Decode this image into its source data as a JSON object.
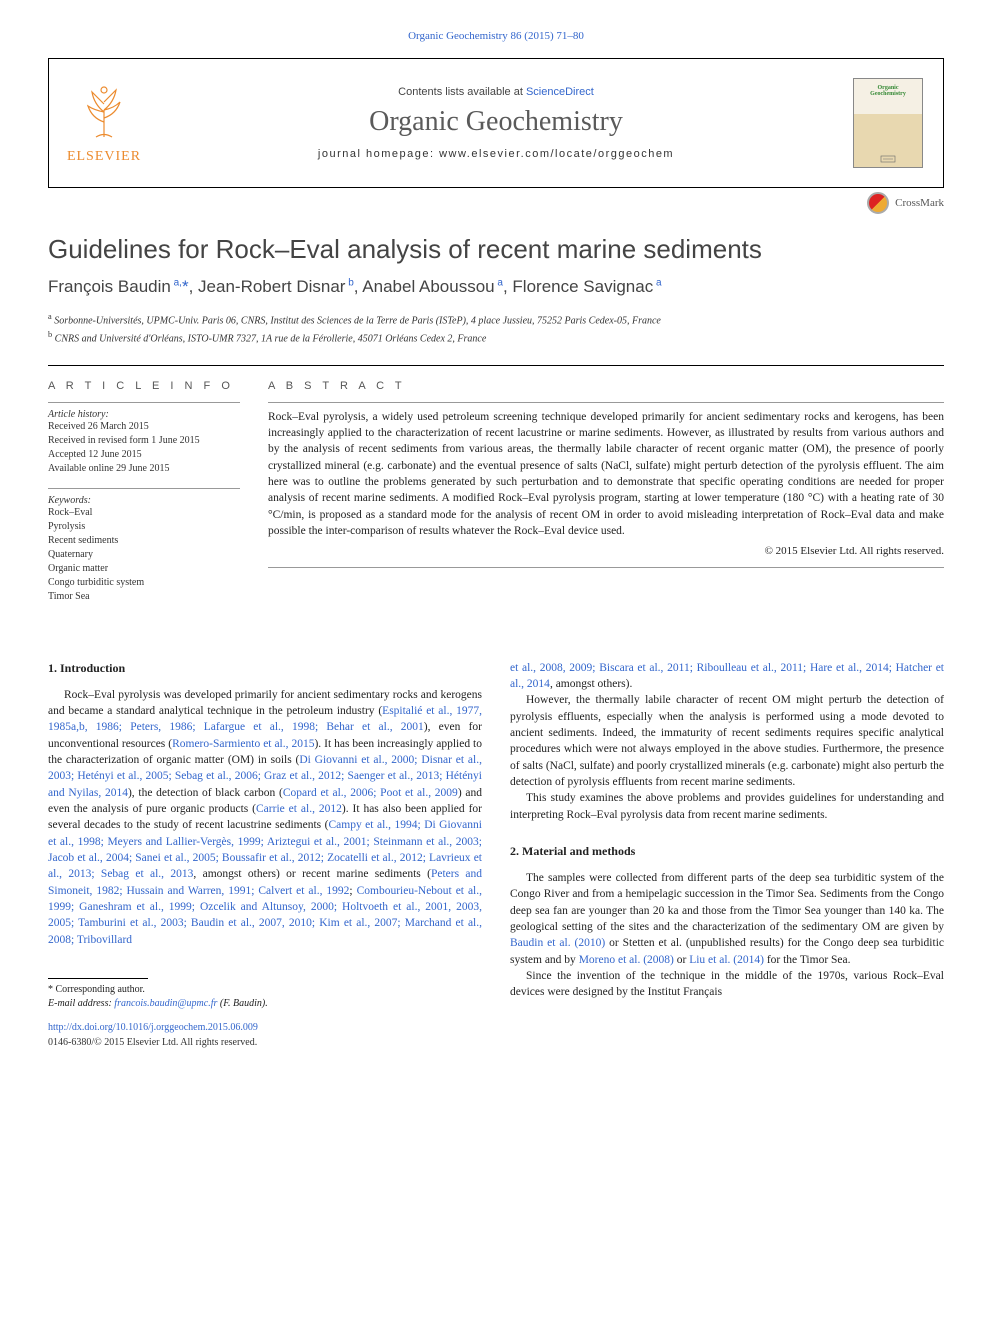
{
  "top_link": "Organic Geochemistry 86 (2015) 71–80",
  "header": {
    "contents_pre": "Contents lists available at ",
    "contents_link": "ScienceDirect",
    "journal": "Organic Geochemistry",
    "homepage": "journal homepage: www.elsevier.com/locate/orggeochem",
    "publisher": "ELSEVIER",
    "cover_small_1": "Organic",
    "cover_small_2": "Geochemistry"
  },
  "crossmark": "CrossMark",
  "title": "Guidelines for Rock–Eval analysis of recent marine sediments",
  "authors_html": "François Baudin<sup> a,</sup><span class='star'>*</span>, Jean-Robert Disnar<sup> b</sup>, Anabel Aboussou<sup> a</sup>, Florence Savignac<sup> a</sup>",
  "affiliations": {
    "a": "a Sorbonne-Universités, UPMC-Univ. Paris 06, CNRS, Institut des Sciences de la Terre de Paris (ISTeP), 4 place Jussieu, 75252 Paris Cedex-05, France",
    "b": "b CNRS and Université d'Orléans, ISTO-UMR 7327, 1A rue de la Férollerie, 45071 Orléans Cedex 2, France"
  },
  "info": {
    "head": "A R T I C L E   I N F O",
    "history_label": "Article history:",
    "history": [
      "Received 26 March 2015",
      "Received in revised form 1 June 2015",
      "Accepted 12 June 2015",
      "Available online 29 June 2015"
    ],
    "keywords_label": "Keywords:",
    "keywords": [
      "Rock–Eval",
      "Pyrolysis",
      "Recent sediments",
      "Quaternary",
      "Organic matter",
      "Congo turbiditic system",
      "Timor Sea"
    ]
  },
  "abstract": {
    "head": "A B S T R A C T",
    "text": "Rock–Eval pyrolysis, a widely used petroleum screening technique developed primarily for ancient sedimentary rocks and kerogens, has been increasingly applied to the characterization of recent lacustrine or marine sediments. However, as illustrated by results from various authors and by the analysis of recent sediments from various areas, the thermally labile character of recent organic matter (OM), the presence of poorly crystallized mineral (e.g. carbonate) and the eventual presence of salts (NaCl, sulfate) might perturb detection of the pyrolysis effluent. The aim here was to outline the problems generated by such perturbation and to demonstrate that specific operating conditions are needed for proper analysis of recent marine sediments. A modified Rock–Eval pyrolysis program, starting at lower temperature (180 °C) with a heating rate of 30 °C/min, is proposed as a standard mode for the analysis of recent OM in order to avoid misleading interpretation of Rock–Eval data and make possible the inter-comparison of results whatever the Rock–Eval device used.",
    "copyright": "© 2015 Elsevier Ltd. All rights reserved."
  },
  "sections": {
    "intro_head": "1. Introduction",
    "intro_p1_pre": "Rock–Eval pyrolysis was developed primarily for ancient sedimentary rocks and kerogens and became a standard analytical technique in the petroleum industry (",
    "intro_p1_c1": "Espitalié et al., 1977, 1985a,b, 1986; Peters, 1986; Lafargue et al., 1998; Behar et al., 2001",
    "intro_p1_mid1": "), even for unconventional resources (",
    "intro_p1_c2": "Romero-Sarmiento et al., 2015",
    "intro_p1_mid2": "). It has been increasingly applied to the characterization of organic matter (OM) in soils (",
    "intro_p1_c3": "Di Giovanni et al., 2000; Disnar et al., 2003; Hetényi et al., 2005; Sebag et al., 2006; Graz et al., 2012; Saenger et al., 2013; Hétényi and Nyilas, 2014",
    "intro_p1_mid3": "), the detection of black carbon (",
    "intro_p1_c4": "Copard et al., 2006; Poot et al., 2009",
    "intro_p1_mid4": ") and even the analysis of pure organic products (",
    "intro_p1_c5": "Carrie et al., 2012",
    "intro_p1_mid5": "). It has also been applied for several decades to the study of recent lacustrine sediments (",
    "intro_p1_c6": "Campy et al., 1994; Di Giovanni et al., 1998; Meyers and Lallier-Vergès, 1999; Ariztegui et al., 2001; Steinmann et al., 2003; Jacob et al., 2004; Sanei et al., 2005; Boussafir et al., 2012; Zocatelli et al., 2012; Lavrieux et al., 2013; Sebag et al., 2013",
    "intro_p1_mid6": ", amongst others) or recent marine sediments (",
    "intro_p1_c7": "Peters and Simoneit, 1982; Hussain and Warren, 1991; Calvert et al., 1992",
    "intro_p1_mid7": "; ",
    "intro_p1_c8": "Combourieu-Nebout et al., 1999; Ganeshram et al., 1999; Ozcelik and Altunsoy, 2000; Holtvoeth et al., 2001, 2003, 2005; Tamburini et al., 2003; Baudin et al., 2007, 2010; Kim et al., 2007; Marchand et al., 2008; Tribovillard",
    "intro_p1_col2_c1": "et al., 2008, 2009; Biscara et al., 2011; Riboulleau et al., 2011; Hare et al., 2014; Hatcher et al., 2014",
    "intro_p1_col2_post": ", amongst others).",
    "intro_p2": "However, the thermally labile character of recent OM might perturb the detection of pyrolysis effluents, especially when the analysis is performed using a mode devoted to ancient sediments. Indeed, the immaturity of recent sediments requires specific analytical procedures which were not always employed in the above studies. Furthermore, the presence of salts (NaCl, sulfate) and poorly crystallized minerals (e.g. carbonate) might also perturb the detection of pyrolysis effluents from recent marine sediments.",
    "intro_p3": "This study examines the above problems and provides guidelines for understanding and interpreting Rock–Eval pyrolysis data from recent marine sediments.",
    "methods_head": "2. Material and methods",
    "methods_p1_pre": "The samples were collected from different parts of the deep sea turbiditic system of the Congo River and from a hemipelagic succession in the Timor Sea. Sediments from the Congo deep sea fan are younger than 20 ka and those from the Timor Sea younger than 140 ka. The geological setting of the sites and the characterization of the sedimentary OM are given by ",
    "methods_p1_c1": "Baudin et al. (2010)",
    "methods_p1_mid1": " or Stetten et al. (unpublished results) for the Congo deep sea turbiditic system and by ",
    "methods_p1_c2": "Moreno et al. (2008)",
    "methods_p1_mid2": " or ",
    "methods_p1_c3": "Liu et al. (2014)",
    "methods_p1_post": " for the Timor Sea.",
    "methods_p2": "Since the invention of the technique in the middle of the 1970s, various Rock–Eval devices were designed by the Institut Français"
  },
  "footnote": {
    "corr": "* Corresponding author.",
    "email_label": "E-mail address: ",
    "email": "francois.baudin@upmc.fr",
    "email_suffix": " (F. Baudin)."
  },
  "doi": {
    "link": "http://dx.doi.org/10.1016/j.orggeochem.2015.06.009",
    "issn_copy": "0146-6380/© 2015 Elsevier Ltd. All rights reserved."
  },
  "colors": {
    "link": "#3366cc",
    "elsevier_orange": "#ec8b2e",
    "text": "#222222",
    "muted": "#555555"
  }
}
